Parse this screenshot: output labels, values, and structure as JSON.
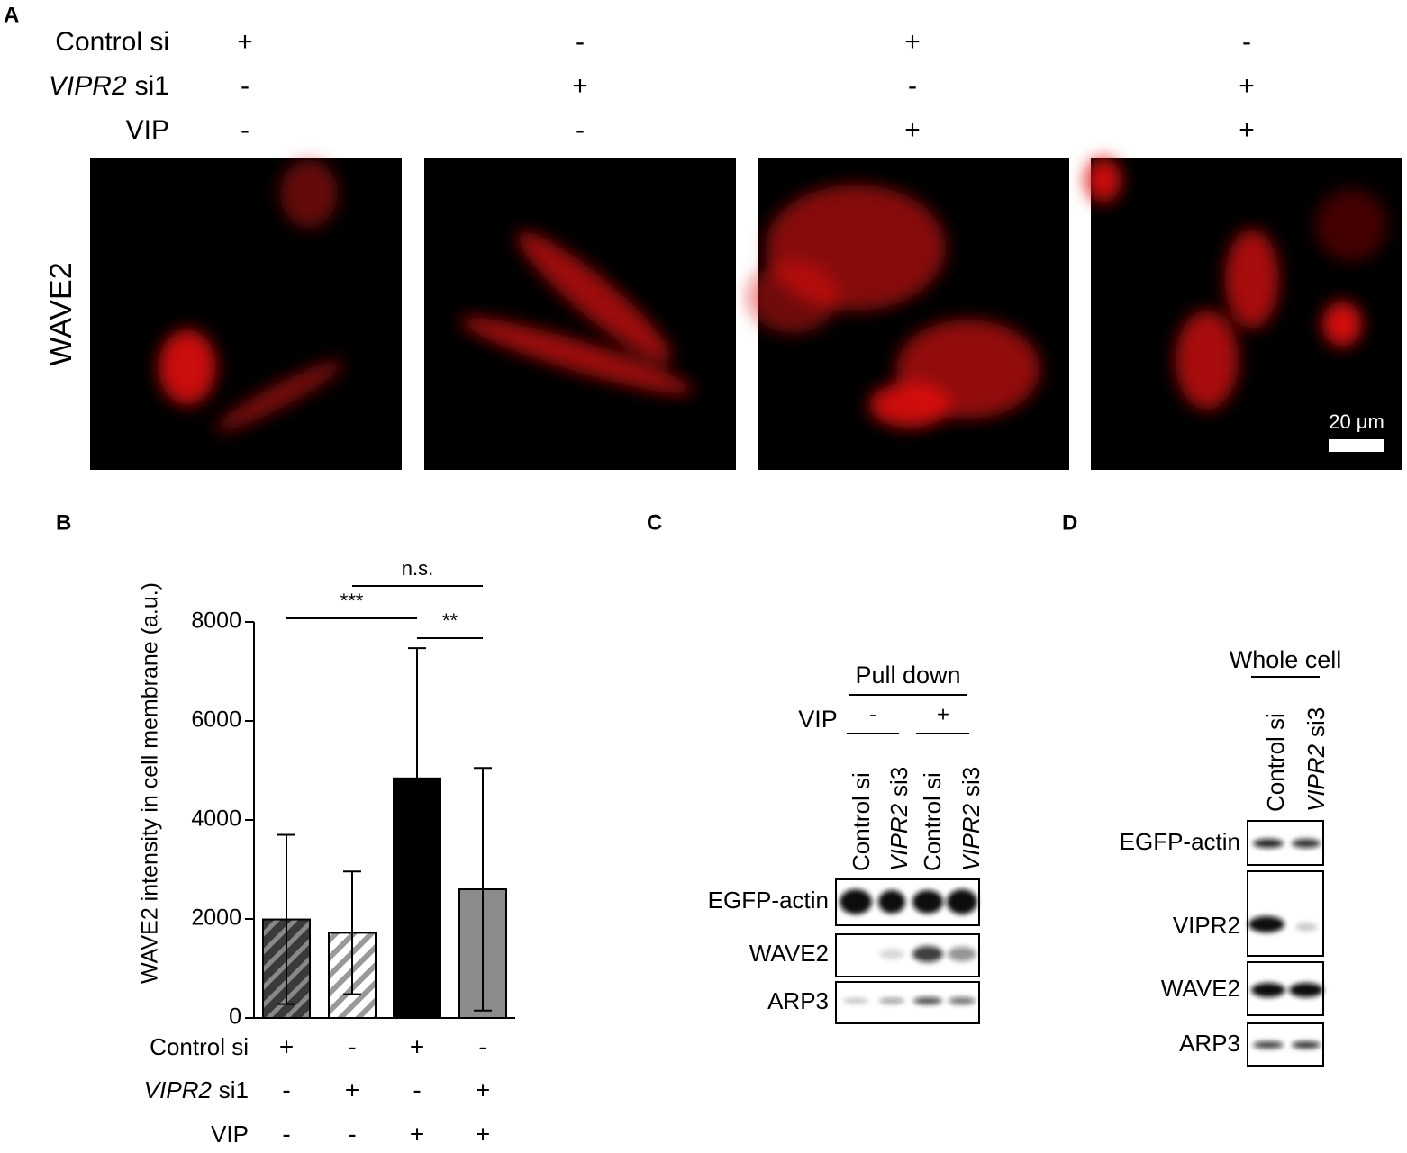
{
  "panel_a": {
    "label": "A",
    "conditions": [
      {
        "text": "Control si",
        "marks": [
          "+",
          "-",
          "+",
          "-"
        ]
      },
      {
        "italic": "VIPR2",
        "text": "si1",
        "marks": [
          "-",
          "+",
          "-",
          "+"
        ]
      },
      {
        "text": "VIP",
        "marks": [
          "-",
          "-",
          "+",
          "+"
        ]
      }
    ],
    "stain": "WAVE2",
    "scale_bar": "20 μm"
  },
  "chart_data": {
    "type": "bar",
    "panel_label": "B",
    "y_label": "WAVE2 intensity in cell membrane (a.u.)",
    "values": [
      1990,
      1720,
      4840,
      2600
    ],
    "errors": [
      1710,
      1240,
      2630,
      2450
    ],
    "colors": [
      "#3a3a3a",
      "#d9d9d9",
      "#000000",
      "#8c8c8c"
    ],
    "hatched": [
      true,
      true,
      false,
      false
    ],
    "ylim": [
      0,
      8000
    ],
    "yticks": [
      0,
      2000,
      4000,
      6000,
      8000
    ],
    "annotations": [
      {
        "text": "n.s.",
        "from": 1,
        "to": 3
      },
      {
        "text": "***",
        "from": 0,
        "to": 2
      },
      {
        "text": "**",
        "from": 2,
        "to": 3
      }
    ],
    "conditions": [
      {
        "text": "Control si",
        "marks": [
          "+",
          "-",
          "+",
          "-"
        ]
      },
      {
        "italic": "VIPR2",
        "text": "si1",
        "marks": [
          "-",
          "+",
          "-",
          "+"
        ]
      },
      {
        "text": "VIP",
        "marks": [
          "-",
          "-",
          "+",
          "+"
        ]
      }
    ]
  },
  "panel_c": {
    "label": "C",
    "header": "Pull down",
    "treatment": "VIP",
    "treatment_marks": [
      "-",
      "+"
    ],
    "lanes": [
      {
        "text": "Control si"
      },
      {
        "italic": "VIPR2",
        "text": "si3"
      },
      {
        "text": "Control si"
      },
      {
        "italic": "VIPR2",
        "text": "si3"
      }
    ],
    "rows": [
      "EGFP-actin",
      "WAVE2",
      "ARP3"
    ]
  },
  "panel_d": {
    "label": "D",
    "header": "Whole cell",
    "lanes": [
      {
        "text": "Control si"
      },
      {
        "italic": "VIPR2",
        "text": "si3"
      }
    ],
    "rows": [
      "EGFP-actin",
      "VIPR2",
      "WAVE2",
      "ARP3"
    ]
  }
}
